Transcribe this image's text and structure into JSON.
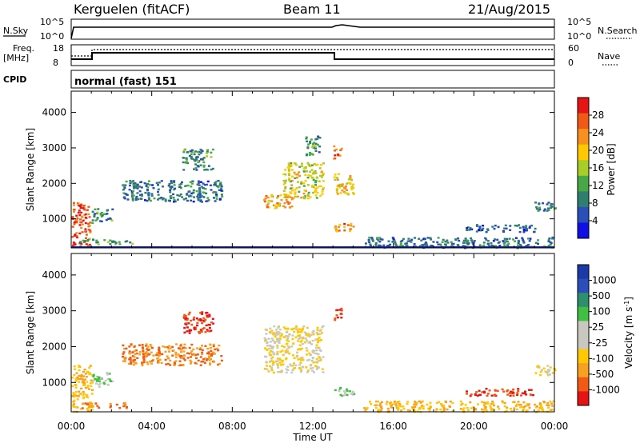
{
  "header": {
    "station": "Kerguelen (fitACF)",
    "beam": "Beam 11",
    "date": "21/Aug/2015"
  },
  "top_strips": {
    "nsky_label": "N.Sky",
    "nsky_ticks": [
      "10^5",
      "10^0"
    ],
    "nsearch_label": "N.Search",
    "nsearch_ticks": [
      "10^5",
      "10^0"
    ],
    "freq_label_1": "Freq.",
    "freq_label_2": "[MHz]",
    "freq_ticks": [
      "18",
      "8"
    ],
    "nave_label": "Nave",
    "nave_ticks": [
      "60",
      "0"
    ],
    "cpid_label": "CPID",
    "program": "normal (fast) 151"
  },
  "colors": {
    "power_scale": [
      "#1010e6",
      "#2a4fb8",
      "#2f7f70",
      "#48a848",
      "#a8cc28",
      "#ffc800",
      "#f89020",
      "#f05a14",
      "#e61414"
    ],
    "velocity_scale": [
      "#e61414",
      "#f05a14",
      "#f8a020",
      "#ffc800",
      "#c8c8c0",
      "#c8c8c0",
      "#40c040",
      "#2e8f6e",
      "#2a4fb8",
      "#1a3aa8"
    ]
  },
  "chart_data": [
    {
      "type": "heatmap",
      "name": "power",
      "x_ticks": [
        "00:00",
        "04:00",
        "08:00",
        "12:00",
        "16:00",
        "20:00",
        "00:00"
      ],
      "xlim_hours": [
        0,
        24
      ],
      "ylabel": "Slant Range [km]",
      "y_ticks": [
        "4000",
        "3000",
        "2000",
        "1000"
      ],
      "ylim_km": [
        180,
        4600
      ],
      "colorbar_label": "Power [dB]",
      "colorbar_ticks": [
        "28",
        "24",
        "20",
        "16",
        "12",
        "8",
        "4"
      ],
      "colorbar_range": [
        0,
        32
      ],
      "echo_regions": [
        {
          "t0": 0.0,
          "t1": 0.9,
          "r0": 200,
          "r1": 1500,
          "level": 28
        },
        {
          "t0": 0.4,
          "t1": 3.0,
          "r0": 300,
          "r1": 450,
          "level": 12
        },
        {
          "t0": 1.0,
          "t1": 2.0,
          "r0": 900,
          "r1": 1300,
          "level": 10
        },
        {
          "t0": 2.5,
          "t1": 7.5,
          "r0": 1500,
          "r1": 2100,
          "level": 8
        },
        {
          "t0": 5.5,
          "t1": 7.0,
          "r0": 2400,
          "r1": 3000,
          "level": 10
        },
        {
          "t0": 9.5,
          "t1": 11.0,
          "r0": 1300,
          "r1": 1700,
          "level": 22
        },
        {
          "t0": 10.5,
          "t1": 12.5,
          "r0": 1600,
          "r1": 2600,
          "level": 18
        },
        {
          "t0": 11.6,
          "t1": 12.3,
          "r0": 2800,
          "r1": 3400,
          "level": 10
        },
        {
          "t0": 13.0,
          "t1": 13.4,
          "r0": 2700,
          "r1": 3100,
          "level": 26
        },
        {
          "t0": 13.0,
          "t1": 14.0,
          "r0": 1700,
          "r1": 2300,
          "level": 20
        },
        {
          "t0": 13.0,
          "t1": 14.0,
          "r0": 650,
          "r1": 900,
          "level": 24
        },
        {
          "t0": 14.5,
          "t1": 24.0,
          "r0": 200,
          "r1": 500,
          "level": 8
        },
        {
          "t0": 19.5,
          "t1": 23.0,
          "r0": 650,
          "r1": 850,
          "level": 6
        },
        {
          "t0": 23.0,
          "t1": 24.0,
          "r0": 1200,
          "r1": 1500,
          "level": 8
        }
      ]
    },
    {
      "type": "heatmap",
      "name": "velocity",
      "x_ticks": [
        "00:00",
        "04:00",
        "08:00",
        "12:00",
        "16:00",
        "20:00",
        "00:00"
      ],
      "xlabel": "Time UT",
      "xlim_hours": [
        0,
        24
      ],
      "ylabel": "Slant Range [km]",
      "y_ticks": [
        "4000",
        "3000",
        "2000",
        "1000"
      ],
      "ylim_km": [
        180,
        4600
      ],
      "colorbar_label": "Velocity [m s^-1]",
      "colorbar_ticks": [
        "1000",
        "500",
        "100",
        "25",
        "-25",
        "-100",
        "-500",
        "-1000"
      ],
      "echo_regions": [
        {
          "t0": 0.0,
          "t1": 1.0,
          "r0": 200,
          "r1": 1500,
          "level": -25
        },
        {
          "t0": 0.5,
          "t1": 3.0,
          "r0": 300,
          "r1": 450,
          "level": -100
        },
        {
          "t0": 1.0,
          "t1": 2.0,
          "r0": 900,
          "r1": 1300,
          "level": 100
        },
        {
          "t0": 2.5,
          "t1": 7.5,
          "r0": 1500,
          "r1": 2100,
          "level": -100
        },
        {
          "t0": 5.5,
          "t1": 7.0,
          "r0": 2400,
          "r1": 3000,
          "level": -500
        },
        {
          "t0": 9.5,
          "t1": 12.5,
          "r0": 1300,
          "r1": 2600,
          "level": 0
        },
        {
          "t0": 13.0,
          "t1": 13.4,
          "r0": 2700,
          "r1": 3100,
          "level": -500
        },
        {
          "t0": 13.0,
          "t1": 14.0,
          "r0": 650,
          "r1": 900,
          "level": 100
        },
        {
          "t0": 14.5,
          "t1": 24.0,
          "r0": 200,
          "r1": 500,
          "level": -25
        },
        {
          "t0": 19.5,
          "t1": 23.0,
          "r0": 650,
          "r1": 850,
          "level": -500
        },
        {
          "t0": 23.0,
          "t1": 24.0,
          "r0": 1200,
          "r1": 1500,
          "level": 0
        }
      ]
    }
  ]
}
